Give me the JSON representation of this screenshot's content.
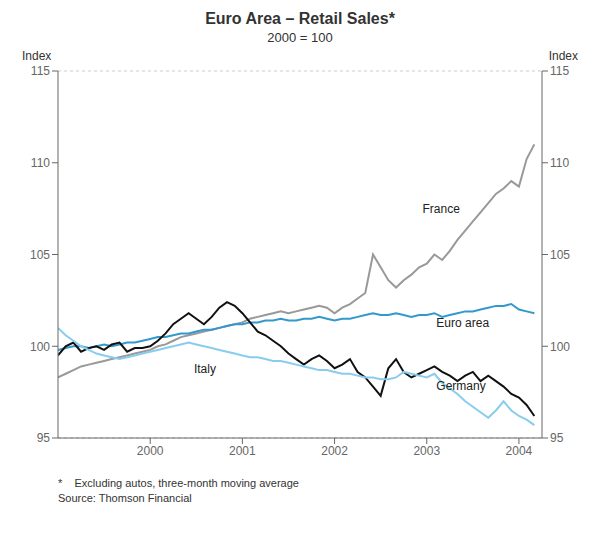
{
  "chart_data": {
    "type": "line",
    "title": "Euro Area – Retail Sales*",
    "subtitle": "2000 = 100",
    "y_label": "Index",
    "y2_label": "Index",
    "footnotes": [
      "*    Excluding autos, three-month moving average",
      "Source: Thomson Financial"
    ],
    "x": [
      1999.0,
      1999.083,
      1999.167,
      1999.25,
      1999.333,
      1999.417,
      1999.5,
      1999.583,
      1999.667,
      1999.75,
      1999.833,
      1999.917,
      2000.0,
      2000.083,
      2000.167,
      2000.25,
      2000.333,
      2000.417,
      2000.5,
      2000.583,
      2000.667,
      2000.75,
      2000.833,
      2000.917,
      2001.0,
      2001.083,
      2001.167,
      2001.25,
      2001.333,
      2001.417,
      2001.5,
      2001.583,
      2001.667,
      2001.75,
      2001.833,
      2001.917,
      2002.0,
      2002.083,
      2002.167,
      2002.25,
      2002.333,
      2002.417,
      2002.5,
      2002.583,
      2002.667,
      2002.75,
      2002.833,
      2002.917,
      2003.0,
      2003.083,
      2003.167,
      2003.25,
      2003.333,
      2003.417,
      2003.5,
      2003.583,
      2003.667,
      2003.75,
      2003.833,
      2003.917,
      2004.0,
      2004.083,
      2004.167
    ],
    "series": [
      {
        "name": "France",
        "color": "#999999",
        "values": [
          98.3,
          98.5,
          98.7,
          98.9,
          99.0,
          99.1,
          99.2,
          99.3,
          99.4,
          99.5,
          99.6,
          99.7,
          99.8,
          100.0,
          100.1,
          100.3,
          100.5,
          100.6,
          100.7,
          100.8,
          100.9,
          101.0,
          101.1,
          101.2,
          101.3,
          101.5,
          101.6,
          101.7,
          101.8,
          101.9,
          101.8,
          101.9,
          102.0,
          102.1,
          102.2,
          102.1,
          101.8,
          102.1,
          102.3,
          102.6,
          102.9,
          105.0,
          104.3,
          103.6,
          103.2,
          103.6,
          103.9,
          104.3,
          104.5,
          105.0,
          104.7,
          105.2,
          105.8,
          106.3,
          106.8,
          107.3,
          107.8,
          108.3,
          108.6,
          109.0,
          108.7,
          110.2,
          111.0
        ]
      },
      {
        "name": "Euro area",
        "color": "#3399cc",
        "values": [
          99.8,
          99.9,
          100.0,
          100.0,
          99.9,
          100.0,
          100.1,
          100.0,
          100.1,
          100.2,
          100.2,
          100.3,
          100.4,
          100.5,
          100.5,
          100.6,
          100.7,
          100.7,
          100.8,
          100.9,
          100.9,
          101.0,
          101.1,
          101.2,
          101.2,
          101.3,
          101.3,
          101.4,
          101.4,
          101.5,
          101.4,
          101.4,
          101.5,
          101.5,
          101.6,
          101.5,
          101.4,
          101.5,
          101.5,
          101.6,
          101.7,
          101.8,
          101.7,
          101.7,
          101.8,
          101.7,
          101.6,
          101.7,
          101.7,
          101.8,
          101.6,
          101.7,
          101.8,
          101.9,
          101.9,
          102.0,
          102.1,
          102.2,
          102.2,
          102.3,
          102.0,
          101.9,
          101.8
        ]
      },
      {
        "name": "Italy",
        "color": "#111111",
        "values": [
          99.5,
          100.0,
          100.2,
          99.7,
          99.9,
          100.0,
          99.8,
          100.1,
          100.2,
          99.7,
          99.9,
          99.9,
          100.0,
          100.3,
          100.7,
          101.2,
          101.5,
          101.8,
          101.5,
          101.2,
          101.6,
          102.1,
          102.4,
          102.2,
          101.8,
          101.3,
          100.8,
          100.6,
          100.3,
          100.0,
          99.6,
          99.3,
          99.0,
          99.3,
          99.5,
          99.2,
          98.8,
          99.0,
          99.3,
          98.6,
          98.3,
          97.8,
          97.3,
          98.8,
          99.3,
          98.6,
          98.3,
          98.5,
          98.7,
          98.9,
          98.6,
          98.4,
          98.1,
          98.4,
          98.6,
          98.1,
          98.4,
          98.1,
          97.8,
          97.4,
          97.2,
          96.8,
          96.2
        ]
      },
      {
        "name": "Germany",
        "color": "#88ccee",
        "values": [
          101.0,
          100.6,
          100.3,
          100.0,
          99.8,
          99.6,
          99.5,
          99.4,
          99.3,
          99.4,
          99.5,
          99.6,
          99.7,
          99.8,
          99.9,
          100.0,
          100.1,
          100.2,
          100.1,
          100.0,
          99.9,
          99.8,
          99.7,
          99.6,
          99.5,
          99.4,
          99.4,
          99.3,
          99.2,
          99.2,
          99.1,
          99.0,
          98.9,
          98.8,
          98.7,
          98.7,
          98.6,
          98.5,
          98.5,
          98.4,
          98.3,
          98.3,
          98.2,
          98.2,
          98.3,
          98.6,
          98.5,
          98.4,
          98.3,
          98.5,
          98.0,
          97.7,
          97.4,
          97.0,
          96.7,
          96.4,
          96.1,
          96.5,
          97.0,
          96.5,
          96.2,
          96.0,
          95.7
        ]
      }
    ],
    "annotations": [
      {
        "text": "France",
        "x": 2002.9,
        "y": 107.5
      },
      {
        "text": "Euro area",
        "x": 2003.05,
        "y": 101.3
      },
      {
        "text": "Italy",
        "x": 2000.42,
        "y": 98.75
      },
      {
        "text": "Germany",
        "x": 2003.05,
        "y": 97.85
      }
    ],
    "xlim": [
      1999,
      2004.25
    ],
    "xticks": [
      2000,
      2001,
      2002,
      2003,
      2004
    ],
    "ylim": [
      95,
      115
    ],
    "yticks": [
      95,
      100,
      105,
      110,
      115
    ],
    "y2lim": [
      95,
      115
    ],
    "y2ticks": [
      95,
      100,
      105,
      110,
      115
    ],
    "grid": true
  }
}
